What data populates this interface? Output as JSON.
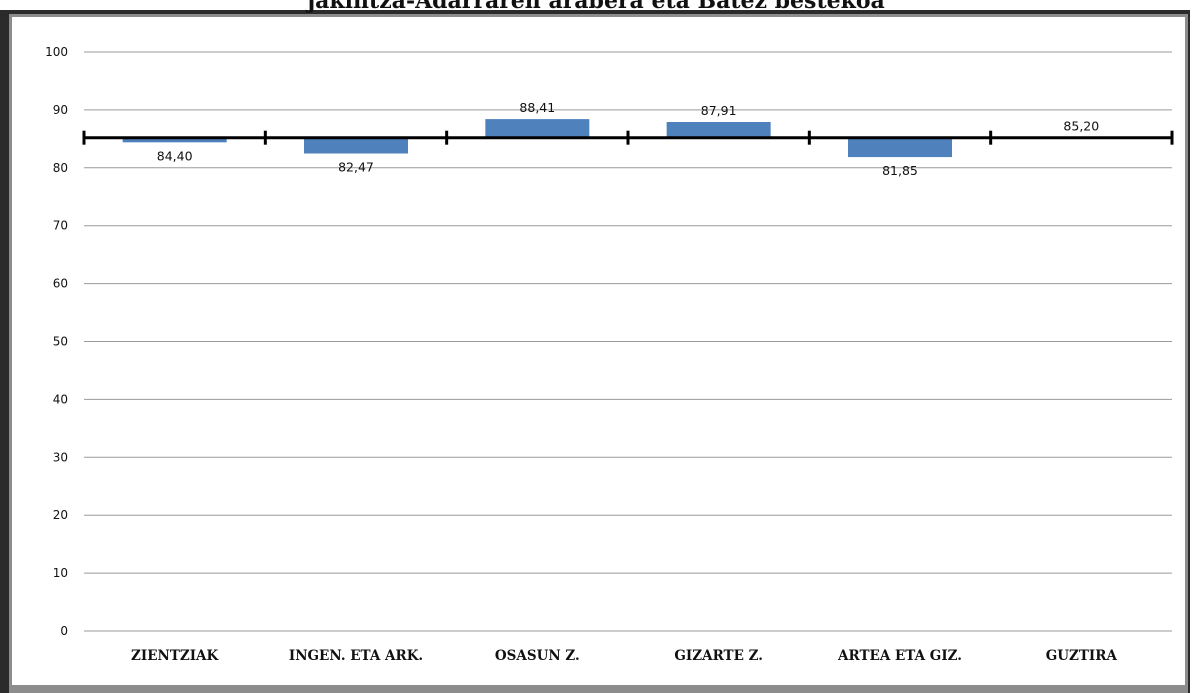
{
  "chart_data": {
    "type": "bar",
    "title": "jakintza-Adarraren arabera eta Batez bestekoa",
    "categories": [
      "ZIENTZIAK",
      "INGEN. ETA ARK.",
      "OSASUN Z.",
      "GIZARTE Z.",
      "ARTEA ETA GIZ.",
      "GUZTIRA"
    ],
    "values": [
      84.4,
      82.47,
      88.41,
      87.91,
      81.85,
      85.2
    ],
    "value_labels": [
      "84,40",
      "82,47",
      "88,41",
      "87,91",
      "81,85",
      "85,20"
    ],
    "baseline": 85.2,
    "ylim": [
      0,
      100
    ],
    "yticks": [
      "0",
      "10",
      "20",
      "30",
      "40",
      "50",
      "60",
      "70",
      "80",
      "90",
      "100"
    ],
    "xlabel": "",
    "ylabel": "",
    "grid": true,
    "legend": "none",
    "colors": {
      "bar": "#4f81bd",
      "baseline": "#000000",
      "grid": "#9a9a9a"
    }
  }
}
